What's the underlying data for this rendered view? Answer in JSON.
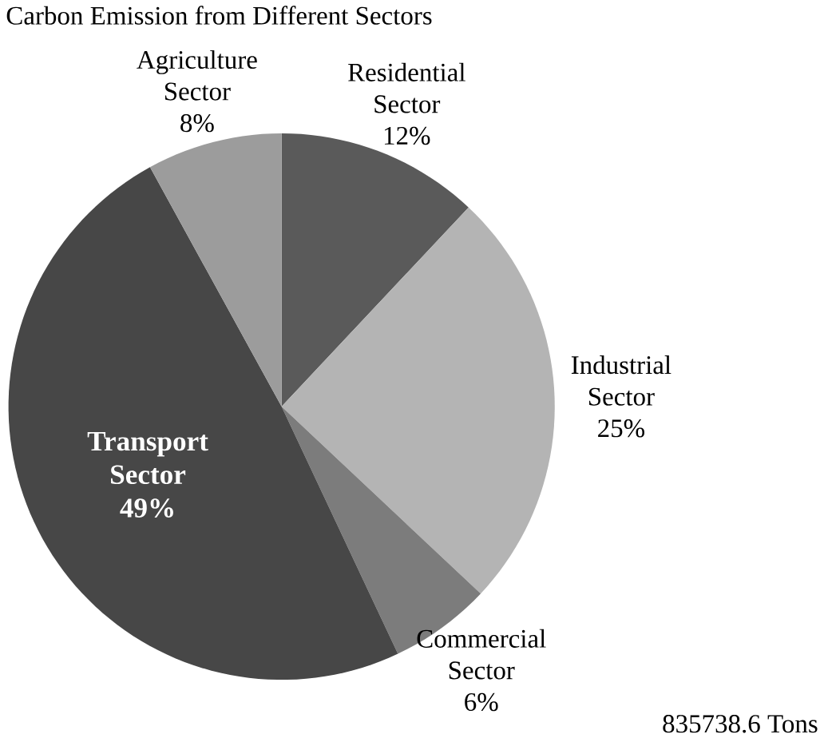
{
  "chart_data": {
    "type": "pie",
    "title": "Carbon Emission from Different Sectors",
    "categories": [
      "Residential Sector",
      "Industrial Sector",
      "Commercial Sector",
      "Transport Sector",
      "Agriculture Sector"
    ],
    "values": [
      12,
      25,
      6,
      49,
      8
    ],
    "value_labels": [
      "12%",
      "25%",
      "6%",
      "49%",
      "8%"
    ],
    "colors": [
      "#5a5a5a",
      "#b4b4b4",
      "#7c7c7c",
      "#474747",
      "#9c9c9c"
    ],
    "annotations": [
      "835738.6 Tons"
    ]
  }
}
